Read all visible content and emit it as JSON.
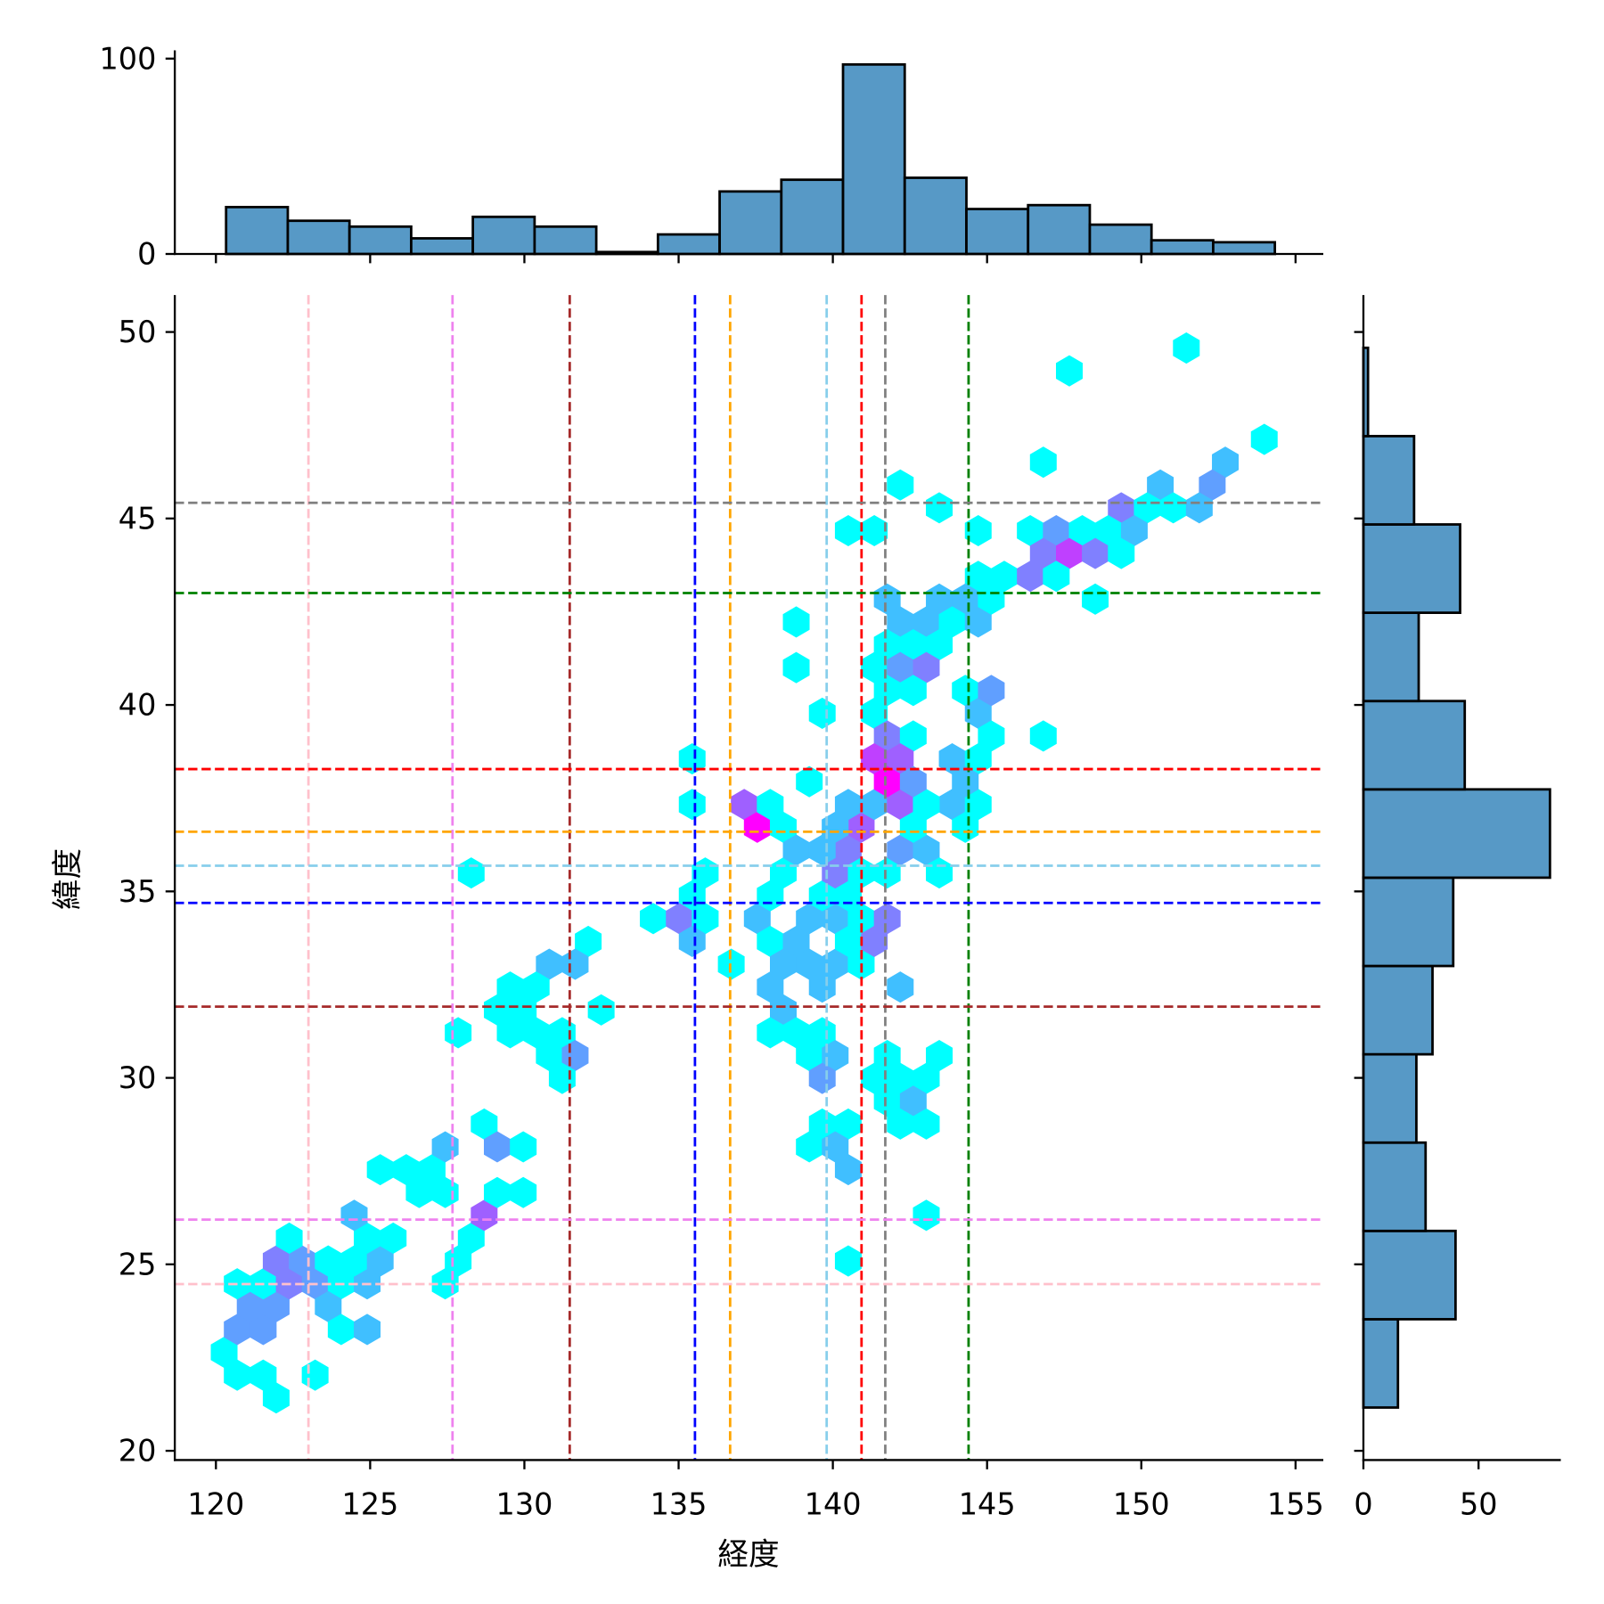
{
  "chart_data": [
    {
      "type": "heatmap",
      "kind": "hexbin",
      "xlabel": "経度",
      "ylabel": "緯度",
      "xlim": [
        118.67,
        155.9
      ],
      "ylim": [
        19.75,
        50.99
      ],
      "xticks": [
        "120",
        "125",
        "130",
        "135",
        "140",
        "145",
        "150",
        "155"
      ],
      "yticks": [
        "20",
        "25",
        "30",
        "35",
        "40",
        "45",
        "50"
      ],
      "grid": false,
      "colormap": "cool",
      "count_range": [
        1,
        9
      ],
      "cells_x_y_count": [
        [
          120.3,
          22.6,
          1
        ],
        [
          120.7,
          22.0,
          1
        ],
        [
          121.6,
          22.0,
          1
        ],
        [
          122.0,
          21.3,
          1
        ],
        [
          123.2,
          22.0,
          1
        ],
        [
          120.7,
          23.2,
          4
        ],
        [
          121.6,
          23.2,
          4
        ],
        [
          121.1,
          23.8,
          4
        ],
        [
          122.0,
          23.8,
          4
        ],
        [
          120.7,
          24.4,
          1
        ],
        [
          121.6,
          24.4,
          1
        ],
        [
          122.4,
          24.4,
          5
        ],
        [
          123.2,
          24.4,
          4
        ],
        [
          124.1,
          24.4,
          1
        ],
        [
          124.9,
          24.4,
          3
        ],
        [
          123.7,
          23.8,
          3
        ],
        [
          124.1,
          23.2,
          1
        ],
        [
          124.9,
          23.2,
          3
        ],
        [
          122.0,
          25.1,
          5
        ],
        [
          122.8,
          25.1,
          4
        ],
        [
          123.7,
          25.1,
          1
        ],
        [
          124.5,
          25.1,
          1
        ],
        [
          125.4,
          25.1,
          3
        ],
        [
          122.4,
          25.7,
          1
        ],
        [
          124.9,
          25.7,
          1
        ],
        [
          125.8,
          25.7,
          1
        ],
        [
          124.5,
          26.3,
          3
        ],
        [
          125.4,
          27.5,
          1
        ],
        [
          126.2,
          27.5,
          1
        ],
        [
          127.0,
          27.5,
          1
        ],
        [
          126.6,
          26.9,
          1
        ],
        [
          127.5,
          26.9,
          1
        ],
        [
          127.5,
          28.2,
          3
        ],
        [
          127.5,
          24.4,
          1
        ],
        [
          127.9,
          25.1,
          1
        ],
        [
          128.3,
          25.7,
          1
        ],
        [
          128.7,
          26.3,
          6
        ],
        [
          129.1,
          26.9,
          1
        ],
        [
          130.0,
          26.9,
          1
        ],
        [
          128.7,
          28.8,
          1
        ],
        [
          129.1,
          28.2,
          4
        ],
        [
          130.0,
          28.2,
          1
        ],
        [
          127.9,
          31.2,
          1
        ],
        [
          128.3,
          35.5,
          1
        ],
        [
          134.2,
          34.3,
          1
        ],
        [
          132.1,
          33.7,
          1
        ],
        [
          130.8,
          33.0,
          3
        ],
        [
          131.7,
          33.0,
          3
        ],
        [
          129.6,
          32.4,
          1
        ],
        [
          130.4,
          32.4,
          1
        ],
        [
          132.5,
          31.8,
          1
        ],
        [
          129.1,
          31.8,
          1
        ],
        [
          130.0,
          31.8,
          1
        ],
        [
          129.6,
          31.2,
          1
        ],
        [
          130.4,
          31.2,
          1
        ],
        [
          131.3,
          31.2,
          1
        ],
        [
          130.8,
          30.6,
          1
        ],
        [
          131.7,
          30.6,
          4
        ],
        [
          131.3,
          30.0,
          1
        ],
        [
          135.4,
          37.4,
          1
        ],
        [
          137.1,
          37.3,
          6
        ],
        [
          137.6,
          36.7,
          9
        ],
        [
          137.9,
          37.3,
          1
        ],
        [
          138.4,
          36.7,
          1
        ],
        [
          135.9,
          35.5,
          1
        ],
        [
          138.4,
          35.5,
          1
        ],
        [
          135.4,
          34.9,
          1
        ],
        [
          135.0,
          34.3,
          5
        ],
        [
          135.9,
          34.3,
          1
        ],
        [
          135.4,
          33.7,
          3
        ],
        [
          136.7,
          33.1,
          1
        ],
        [
          137.6,
          34.3,
          3
        ],
        [
          138.0,
          34.9,
          1
        ],
        [
          138.0,
          33.7,
          1
        ],
        [
          138.8,
          33.7,
          3
        ],
        [
          138.4,
          33.1,
          3
        ],
        [
          139.2,
          33.1,
          3
        ],
        [
          140.1,
          33.1,
          3
        ],
        [
          139.2,
          34.3,
          3
        ],
        [
          140.1,
          34.3,
          3
        ],
        [
          139.7,
          34.9,
          1
        ],
        [
          140.5,
          34.9,
          1
        ],
        [
          140.5,
          33.7,
          1
        ],
        [
          140.9,
          34.3,
          1
        ],
        [
          140.9,
          33.1,
          1
        ],
        [
          141.7,
          34.3,
          5
        ],
        [
          141.3,
          33.7,
          5
        ],
        [
          138.0,
          32.5,
          3
        ],
        [
          139.7,
          32.5,
          3
        ],
        [
          138.4,
          31.8,
          3
        ],
        [
          142.2,
          32.4,
          3
        ],
        [
          138.0,
          31.2,
          1
        ],
        [
          138.8,
          31.2,
          1
        ],
        [
          139.7,
          31.2,
          1
        ],
        [
          139.2,
          30.6,
          1
        ],
        [
          140.1,
          30.6,
          3
        ],
        [
          139.7,
          30.0,
          4
        ],
        [
          141.7,
          30.6,
          1
        ],
        [
          143.4,
          30.6,
          1
        ],
        [
          141.3,
          30.0,
          1
        ],
        [
          142.2,
          30.0,
          1
        ],
        [
          143.0,
          30.0,
          1
        ],
        [
          141.7,
          29.4,
          1
        ],
        [
          142.6,
          29.4,
          3
        ],
        [
          142.2,
          28.8,
          1
        ],
        [
          143.0,
          28.8,
          1
        ],
        [
          139.7,
          28.8,
          1
        ],
        [
          140.5,
          28.8,
          1
        ],
        [
          139.2,
          28.1,
          1
        ],
        [
          140.1,
          28.1,
          3
        ],
        [
          140.5,
          27.5,
          3
        ],
        [
          143.0,
          26.3,
          1
        ],
        [
          140.5,
          25.1,
          1
        ],
        [
          139.2,
          36.1,
          3
        ],
        [
          140.1,
          36.8,
          3
        ],
        [
          140.5,
          36.1,
          5
        ],
        [
          140.1,
          35.5,
          5
        ],
        [
          140.9,
          36.7,
          6
        ],
        [
          140.9,
          35.5,
          1
        ],
        [
          141.7,
          35.5,
          1
        ],
        [
          141.3,
          37.4,
          3
        ],
        [
          142.2,
          37.3,
          6
        ],
        [
          142.2,
          36.1,
          4
        ],
        [
          143.0,
          36.1,
          3
        ],
        [
          142.6,
          36.7,
          1
        ],
        [
          143.4,
          35.5,
          1
        ],
        [
          143.8,
          37.3,
          3
        ],
        [
          144.3,
          36.7,
          1
        ],
        [
          144.7,
          37.3,
          1
        ],
        [
          143.0,
          37.3,
          1
        ],
        [
          140.5,
          37.3,
          3
        ],
        [
          139.7,
          36.8,
          3
        ],
        [
          139.7,
          36.1,
          3
        ],
        [
          142.2,
          46.0,
          1
        ],
        [
          143.5,
          45.3,
          1
        ],
        [
          140.5,
          44.7,
          1
        ],
        [
          141.3,
          44.7,
          1
        ],
        [
          144.7,
          44.7,
          1
        ],
        [
          144.7,
          43.5,
          1
        ],
        [
          141.8,
          42.9,
          3
        ],
        [
          143.5,
          42.9,
          3
        ],
        [
          144.3,
          42.9,
          3
        ],
        [
          142.2,
          42.3,
          3
        ],
        [
          143.0,
          42.3,
          3
        ],
        [
          143.9,
          42.3,
          1
        ],
        [
          144.7,
          42.3,
          3
        ],
        [
          138.8,
          42.3,
          1
        ],
        [
          141.8,
          41.7,
          1
        ],
        [
          142.6,
          41.7,
          1
        ],
        [
          143.5,
          41.7,
          1
        ],
        [
          138.8,
          41.0,
          1
        ],
        [
          141.3,
          41.0,
          1
        ],
        [
          142.2,
          41.0,
          4
        ],
        [
          143.0,
          41.0,
          5
        ],
        [
          141.8,
          40.4,
          1
        ],
        [
          142.6,
          40.4,
          1
        ],
        [
          144.3,
          40.4,
          1
        ],
        [
          141.3,
          39.8,
          1
        ],
        [
          139.7,
          39.8,
          1
        ],
        [
          144.7,
          39.8,
          3
        ],
        [
          141.8,
          39.2,
          5
        ],
        [
          142.6,
          39.2,
          1
        ],
        [
          141.3,
          38.6,
          7
        ],
        [
          142.2,
          38.6,
          6
        ],
        [
          141.8,
          38.0,
          9
        ],
        [
          142.6,
          38.0,
          4
        ],
        [
          143.9,
          38.6,
          3
        ],
        [
          144.7,
          38.6,
          1
        ],
        [
          135.4,
          38.6,
          1
        ],
        [
          139.2,
          38.0,
          1
        ],
        [
          145.1,
          40.4,
          4
        ],
        [
          146.8,
          39.2,
          1
        ],
        [
          145.1,
          39.2,
          1
        ],
        [
          144.3,
          38.0,
          3
        ],
        [
          151.4,
          49.6,
          1
        ],
        [
          147.7,
          49.0,
          1
        ],
        [
          154.0,
          47.2,
          1
        ],
        [
          146.8,
          46.6,
          1
        ],
        [
          152.7,
          46.6,
          3
        ],
        [
          152.3,
          46.0,
          4
        ],
        [
          150.6,
          46.0,
          3
        ],
        [
          149.3,
          45.3,
          5
        ],
        [
          150.2,
          45.3,
          1
        ],
        [
          151.0,
          45.3,
          1
        ],
        [
          151.9,
          45.3,
          3
        ],
        [
          146.4,
          44.7,
          1
        ],
        [
          147.2,
          44.7,
          4
        ],
        [
          148.1,
          44.7,
          1
        ],
        [
          148.9,
          44.7,
          1
        ],
        [
          149.7,
          44.7,
          3
        ],
        [
          146.8,
          44.1,
          5
        ],
        [
          147.7,
          44.1,
          7
        ],
        [
          148.5,
          44.1,
          5
        ],
        [
          149.3,
          44.1,
          1
        ],
        [
          145.5,
          43.5,
          1
        ],
        [
          146.4,
          43.5,
          5
        ],
        [
          147.2,
          43.5,
          1
        ],
        [
          148.5,
          42.9,
          1
        ],
        [
          145.1,
          42.9,
          1
        ]
      ],
      "reference_lines": {
        "vertical": [
          {
            "x": 123.0,
            "color": "#ffc0cb"
          },
          {
            "x": 127.67,
            "color": "#ee82ee"
          },
          {
            "x": 131.47,
            "color": "#a52a2a"
          },
          {
            "x": 135.53,
            "color": "#0000ff"
          },
          {
            "x": 136.67,
            "color": "#ffa500"
          },
          {
            "x": 139.8,
            "color": "#87ceeb"
          },
          {
            "x": 140.93,
            "color": "#ff0000"
          },
          {
            "x": 141.7,
            "color": "#808080"
          },
          {
            "x": 144.4,
            "color": "#008000"
          }
        ],
        "horizontal": [
          {
            "y": 45.42,
            "color": "#808080"
          },
          {
            "y": 43.0,
            "color": "#008000"
          },
          {
            "y": 38.28,
            "color": "#ff0000"
          },
          {
            "y": 36.6,
            "color": "#ffa500"
          },
          {
            "y": 35.69,
            "color": "#87ceeb"
          },
          {
            "y": 34.69,
            "color": "#0000ff"
          },
          {
            "y": 31.91,
            "color": "#a52a2a"
          },
          {
            "y": 26.2,
            "color": "#ee82ee"
          },
          {
            "y": 24.47,
            "color": "#ffc0cb"
          }
        ]
      }
    },
    {
      "type": "bar",
      "kind": "histogram",
      "orientation": "vertical",
      "variable": "経度",
      "bin_start": 120.33,
      "bin_width": 2.0,
      "values": [
        24,
        17,
        14,
        8,
        19,
        14,
        1,
        10,
        32,
        38,
        97,
        39,
        23,
        25,
        15,
        7,
        6
      ],
      "ylim": [
        0,
        103.7
      ],
      "yticks": [
        "0",
        "100"
      ],
      "color": "#5799c6"
    },
    {
      "type": "bar",
      "kind": "histogram",
      "orientation": "horizontal",
      "variable": "緯度",
      "bin_start": 21.16,
      "bin_width": 2.368,
      "values": [
        15,
        40,
        27,
        23,
        30,
        39,
        81,
        44,
        24,
        42,
        22,
        2
      ],
      "xlim": [
        0,
        85.7
      ],
      "xticks": [
        "0",
        "50"
      ],
      "color": "#5799c6"
    }
  ]
}
